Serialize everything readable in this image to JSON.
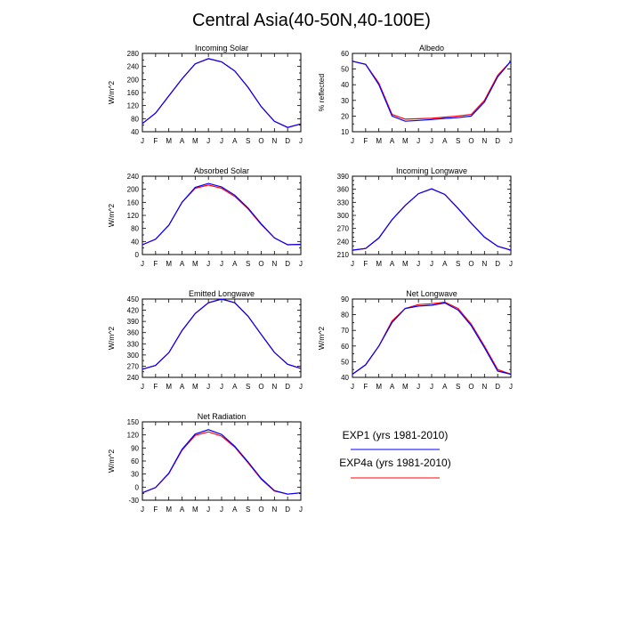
{
  "figure_title": "Central Asia(40-50N,40-100E)",
  "legend": [
    {
      "label": "EXP1 (yrs 1981-2010)",
      "color": "#0000ff"
    },
    {
      "label": "EXP4a (yrs 1981-2010)",
      "color": "#ff0000"
    }
  ],
  "chart_data": [
    {
      "type": "line",
      "title": "Incoming Solar",
      "ylabel": "W/m^2",
      "xlabel": "",
      "categories": [
        "J",
        "F",
        "M",
        "A",
        "M",
        "J",
        "J",
        "A",
        "S",
        "O",
        "N",
        "D",
        "J"
      ],
      "ylim": [
        40,
        280
      ],
      "yticks": [
        40,
        60,
        80,
        100,
        120,
        140,
        160,
        180,
        200,
        220,
        240,
        260,
        280
      ],
      "ytick_labels": [
        40,
        80,
        120,
        160,
        200,
        240,
        280
      ],
      "series": [
        {
          "color": "#ff0000",
          "values": [
            65,
            97,
            150,
            202,
            248,
            264,
            254,
            226,
            176,
            117,
            72,
            53,
            64
          ]
        },
        {
          "color": "#0000ff",
          "values": [
            65,
            97,
            150,
            202,
            248,
            264,
            254,
            226,
            176,
            117,
            72,
            53,
            64
          ]
        }
      ]
    },
    {
      "type": "line",
      "title": "Albedo",
      "ylabel": "% reflected",
      "xlabel": "",
      "categories": [
        "J",
        "F",
        "M",
        "A",
        "M",
        "J",
        "J",
        "A",
        "S",
        "O",
        "N",
        "D",
        "J"
      ],
      "ylim": [
        10,
        60
      ],
      "yticks": [
        10,
        15,
        20,
        25,
        30,
        35,
        40,
        45,
        50,
        55,
        60
      ],
      "ytick_labels": [
        10,
        20,
        30,
        40,
        50,
        60
      ],
      "series": [
        {
          "color": "#ff0000",
          "values": [
            55,
            53,
            41,
            21,
            18,
            18.3,
            18.6,
            19.3,
            20,
            21,
            30,
            46,
            55
          ]
        },
        {
          "color": "#0000ff",
          "values": [
            55,
            53,
            40,
            20,
            16.7,
            17.2,
            17.8,
            18.5,
            19,
            20,
            29,
            45,
            55
          ]
        }
      ]
    },
    {
      "type": "line",
      "title": "Absorbed Solar",
      "ylabel": "W/m^2",
      "xlabel": "",
      "categories": [
        "J",
        "F",
        "M",
        "A",
        "M",
        "J",
        "J",
        "A",
        "S",
        "O",
        "N",
        "D",
        "J"
      ],
      "ylim": [
        0,
        240
      ],
      "yticks": [
        0,
        20,
        40,
        60,
        80,
        100,
        120,
        140,
        160,
        180,
        200,
        220,
        240
      ],
      "ytick_labels": [
        0,
        40,
        80,
        120,
        160,
        200,
        240
      ],
      "series": [
        {
          "color": "#ff0000",
          "values": [
            30,
            47,
            90,
            160,
            203,
            213,
            203,
            178,
            140,
            92,
            51,
            30,
            31
          ]
        },
        {
          "color": "#0000ff",
          "values": [
            30,
            47,
            90,
            160,
            206,
            218,
            207,
            182,
            143,
            94,
            51,
            30,
            31
          ]
        }
      ]
    },
    {
      "type": "line",
      "title": "Incoming Longwave",
      "ylabel": "",
      "xlabel": "",
      "categories": [
        "J",
        "F",
        "M",
        "A",
        "M",
        "J",
        "J",
        "A",
        "S",
        "O",
        "N",
        "D",
        "J"
      ],
      "ylim": [
        210,
        390
      ],
      "yticks": [
        210,
        220,
        230,
        240,
        250,
        260,
        270,
        280,
        290,
        300,
        310,
        320,
        330,
        340,
        350,
        360,
        370,
        380,
        390
      ],
      "ytick_labels": [
        210,
        240,
        270,
        300,
        330,
        360,
        390
      ],
      "series": [
        {
          "color": "#ff0000",
          "values": [
            220,
            224,
            248,
            290,
            323,
            350,
            361,
            348,
            316,
            282,
            250,
            229,
            220
          ]
        },
        {
          "color": "#0000ff",
          "values": [
            220,
            224,
            248,
            290,
            323,
            350,
            361,
            348,
            316,
            282,
            250,
            229,
            220
          ]
        }
      ]
    },
    {
      "type": "line",
      "title": "Emitted Longwave",
      "ylabel": "W/m^2",
      "xlabel": "",
      "categories": [
        "J",
        "F",
        "M",
        "A",
        "M",
        "J",
        "J",
        "A",
        "S",
        "O",
        "N",
        "D",
        "J"
      ],
      "ylim": [
        240,
        450
      ],
      "yticks": [
        240,
        255,
        270,
        285,
        300,
        315,
        330,
        345,
        360,
        375,
        390,
        405,
        420,
        435,
        450
      ],
      "ytick_labels": [
        240,
        270,
        300,
        330,
        360,
        390,
        420,
        450
      ],
      "series": [
        {
          "color": "#ff0000",
          "values": [
            262,
            272,
            306,
            365,
            411,
            440,
            450,
            440,
            404,
            355,
            307,
            275,
            264
          ]
        },
        {
          "color": "#0000ff",
          "values": [
            262,
            272,
            306,
            365,
            411,
            440,
            450,
            440,
            404,
            355,
            307,
            275,
            264
          ]
        }
      ]
    },
    {
      "type": "line",
      "title": "Net Longwave",
      "ylabel": "W/m^2",
      "xlabel": "",
      "categories": [
        "J",
        "F",
        "M",
        "A",
        "M",
        "J",
        "J",
        "A",
        "S",
        "O",
        "N",
        "D",
        "J"
      ],
      "ylim": [
        40,
        90
      ],
      "yticks": [
        40,
        45,
        50,
        55,
        60,
        65,
        70,
        75,
        80,
        85,
        90
      ],
      "ytick_labels": [
        40,
        50,
        60,
        70,
        80,
        90
      ],
      "series": [
        {
          "color": "#ff0000",
          "values": [
            42,
            48,
            60,
            76,
            84,
            86.5,
            87,
            88,
            84,
            74,
            60,
            45,
            42
          ]
        },
        {
          "color": "#0000ff",
          "values": [
            42,
            48,
            60,
            75,
            84,
            85.5,
            86,
            87.5,
            83,
            73,
            59,
            44,
            42
          ]
        }
      ]
    },
    {
      "type": "line",
      "title": "Net Radiation",
      "ylabel": "W/m^2",
      "xlabel": "",
      "categories": [
        "J",
        "F",
        "M",
        "A",
        "M",
        "J",
        "J",
        "A",
        "S",
        "O",
        "N",
        "D",
        "J"
      ],
      "ylim": [
        -30,
        150
      ],
      "yticks": [
        -30,
        -15,
        0,
        15,
        30,
        45,
        60,
        75,
        90,
        105,
        120,
        135,
        150
      ],
      "ytick_labels": [
        -30,
        0,
        30,
        60,
        90,
        120,
        150
      ],
      "series": [
        {
          "color": "#ff0000",
          "values": [
            -13,
            -1,
            31,
            85,
            119,
            127,
            117,
            92,
            56,
            18,
            -9,
            -16,
            -13
          ]
        },
        {
          "color": "#0000ff",
          "values": [
            -13,
            -1,
            32,
            87,
            122,
            132,
            121,
            94,
            58,
            20,
            -8,
            -16,
            -13
          ]
        }
      ]
    }
  ]
}
